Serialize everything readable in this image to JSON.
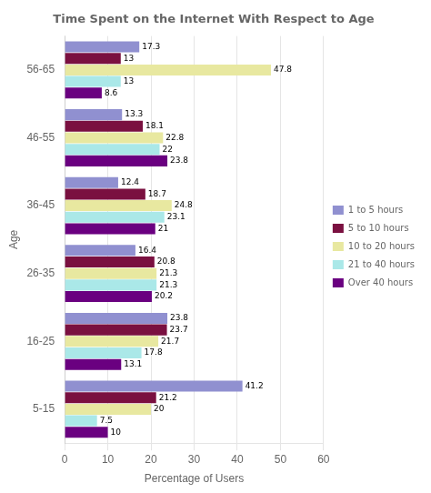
{
  "chart_data": {
    "type": "bar",
    "orientation": "horizontal",
    "title": "Time Spent on the Internet With Respect to Age",
    "xlabel": "Percentage of Users",
    "ylabel": "Age",
    "categories": [
      "5-15",
      "16-25",
      "26-35",
      "36-45",
      "46-55",
      "56-65"
    ],
    "series": [
      {
        "name": "1 to 5 hours",
        "color": "#9090d0",
        "values": [
          41.2,
          23.8,
          16.4,
          12.4,
          13.3,
          17.3
        ],
        "value_labels": [
          "41.2",
          "23.8",
          "16.4",
          "12.4",
          "13.3",
          "17.3"
        ]
      },
      {
        "name": "5 to 10 hours",
        "color": "#7a1040",
        "values": [
          21.2,
          23.7,
          20.8,
          18.7,
          18.1,
          13.0
        ],
        "value_labels": [
          "21.2",
          "23.7",
          "20.8",
          "18.7",
          "18.1",
          "13"
        ]
      },
      {
        "name": "10 to 20 hours",
        "color": "#e8e8a0",
        "values": [
          20.0,
          21.7,
          21.3,
          24.8,
          22.8,
          47.8
        ],
        "value_labels": [
          "20",
          "21.7",
          "21.3",
          "24.8",
          "22.8",
          "47.8"
        ]
      },
      {
        "name": "21 to 40 hours",
        "color": "#aae8e8",
        "values": [
          7.5,
          17.8,
          21.3,
          23.1,
          22.0,
          13.0
        ],
        "value_labels": [
          "7.5",
          "17.8",
          "21.3",
          "23.1",
          "22",
          "13"
        ]
      },
      {
        "name": "Over 40 hours",
        "color": "#6a0080",
        "values": [
          10.0,
          13.1,
          20.2,
          21.0,
          23.8,
          8.6
        ],
        "value_labels": [
          "10",
          "13.1",
          "20.2",
          "21",
          "23.8",
          "8.6"
        ]
      }
    ],
    "xlim": [
      0,
      60
    ],
    "xticks": [
      0,
      10,
      20,
      30,
      40,
      50,
      60
    ],
    "grid": true,
    "legend": "right",
    "data_labels": true
  }
}
